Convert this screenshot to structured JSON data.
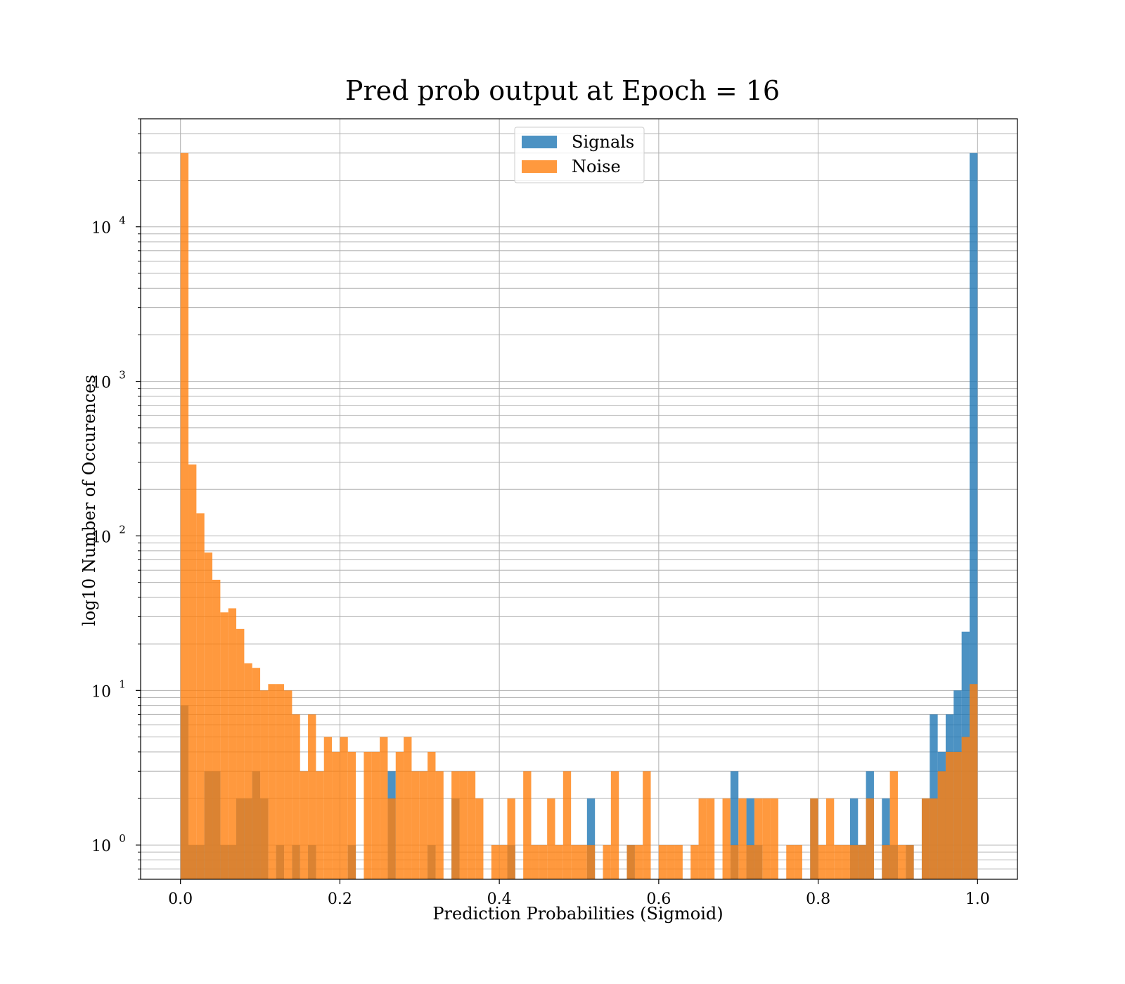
{
  "chart_data": {
    "type": "bar",
    "title": "Pred prob output at Epoch = 16",
    "xlabel": "Prediction Probabilities (Sigmoid)",
    "ylabel": "log10 Number of Occurences",
    "xlim": [
      -0.05,
      1.05
    ],
    "ylim": [
      0.6,
      50000
    ],
    "yscale": "log",
    "grid": true,
    "legend_position": "top-center",
    "x_ticks": [
      {
        "value": 0.0,
        "label": "0.0"
      },
      {
        "value": 0.2,
        "label": "0.2"
      },
      {
        "value": 0.4,
        "label": "0.4"
      },
      {
        "value": 0.6,
        "label": "0.6"
      },
      {
        "value": 0.8,
        "label": "0.8"
      },
      {
        "value": 1.0,
        "label": "1.0"
      }
    ],
    "y_ticks": [
      {
        "value": 1,
        "base": "10",
        "exp": "0"
      },
      {
        "value": 10,
        "base": "10",
        "exp": "1"
      },
      {
        "value": 100,
        "base": "10",
        "exp": "2"
      },
      {
        "value": 1000,
        "base": "10",
        "exp": "3"
      },
      {
        "value": 10000,
        "base": "10",
        "exp": "4"
      }
    ],
    "bins": 100,
    "bin_range": [
      0,
      1
    ],
    "series": [
      {
        "name": "Signals",
        "color": "#1f77b4",
        "opacity": 0.8,
        "values": [
          8,
          1,
          1,
          3,
          3,
          1,
          1,
          2,
          2,
          3,
          2,
          0,
          1,
          0,
          1,
          0,
          1,
          0,
          0,
          0,
          0,
          1,
          0,
          0,
          0,
          0,
          3,
          0,
          0,
          0,
          0,
          1,
          0,
          0,
          2,
          0,
          0,
          0,
          0,
          0,
          0,
          1,
          0,
          0,
          0,
          0,
          0,
          0,
          0,
          0,
          0,
          2,
          0,
          0,
          0,
          0,
          1,
          0,
          0,
          0,
          0,
          0,
          0,
          0,
          0,
          0,
          0,
          0,
          0,
          3,
          0,
          2,
          1,
          0,
          0,
          0,
          0,
          0,
          0,
          2,
          0,
          0,
          0,
          0,
          2,
          1,
          3,
          0,
          2,
          1,
          0,
          1,
          0,
          2,
          7,
          4,
          7,
          10,
          24,
          30000
        ]
      },
      {
        "name": "Noise",
        "color": "#ff7f0e",
        "opacity": 0.8,
        "values": [
          30000,
          290,
          140,
          78,
          52,
          32,
          34,
          25,
          15,
          14,
          10,
          11,
          11,
          10,
          7,
          3,
          7,
          3,
          5,
          4,
          5,
          4,
          0,
          4,
          4,
          5,
          2,
          4,
          5,
          3,
          3,
          4,
          3,
          0,
          3,
          3,
          3,
          2,
          0,
          1,
          1,
          2,
          0,
          3,
          1,
          1,
          2,
          1,
          3,
          1,
          1,
          1,
          0,
          1,
          3,
          0,
          1,
          1,
          3,
          0,
          1,
          1,
          1,
          0,
          1,
          2,
          2,
          0,
          2,
          1,
          2,
          1,
          2,
          2,
          2,
          0,
          1,
          1,
          0,
          2,
          1,
          2,
          1,
          1,
          1,
          1,
          2,
          0,
          1,
          3,
          1,
          1,
          0,
          2,
          2,
          3,
          4,
          4,
          5,
          11
        ]
      }
    ]
  }
}
